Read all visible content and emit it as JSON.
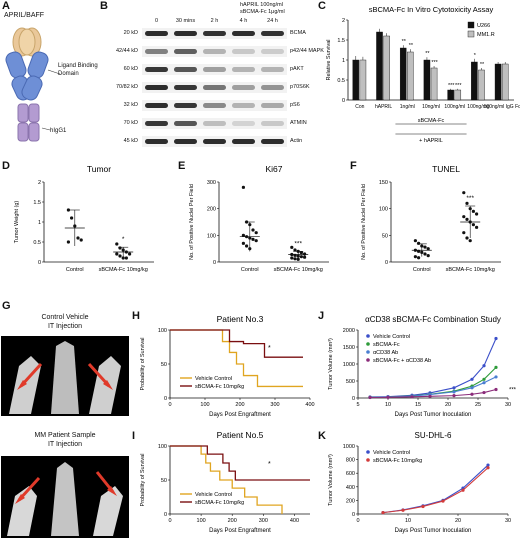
{
  "panels": {
    "A": {
      "label": "A",
      "title": "APRIL/BAFF",
      "domain": "Ligand Binding Domain",
      "fc": "hIgG1"
    },
    "B": {
      "label": "B",
      "header": [
        "hAPRIL 100ng/ml",
        "sBCMA-Fc 1μg/ml"
      ],
      "times": [
        "0",
        "30 mins",
        "2 h",
        "4 h",
        "24 h"
      ],
      "rows": [
        {
          "size": "20 kD",
          "name": "BCMA",
          "int": [
            0.95,
            0.95,
            0.92,
            0.95,
            0.92
          ]
        },
        {
          "size": "42/44 kD",
          "name": "p42/44 MAPK",
          "int": [
            0.55,
            0.7,
            0.3,
            0.2,
            0.18
          ]
        },
        {
          "size": "60 kD",
          "name": "pAKT",
          "int": [
            0.9,
            0.75,
            0.4,
            0.3,
            0.3
          ]
        },
        {
          "size": "70/82 kD",
          "name": "p70S6K",
          "int": [
            0.95,
            0.9,
            0.6,
            0.4,
            0.45
          ]
        },
        {
          "size": "32 kD",
          "name": "pS6",
          "int": [
            0.95,
            0.9,
            0.5,
            0.3,
            0.35
          ]
        },
        {
          "size": "70 kD",
          "name": "ATMIN",
          "int": [
            0.9,
            0.75,
            0.25,
            0.15,
            0.2
          ]
        },
        {
          "size": "45 kD",
          "name": "Actin",
          "int": [
            0.95,
            0.95,
            0.95,
            0.95,
            0.95
          ]
        }
      ]
    },
    "C": {
      "label": "C"
    },
    "D": {
      "label": "D"
    },
    "E": {
      "label": "E"
    },
    "F": {
      "label": "F"
    },
    "G": {
      "label": "G",
      "top_title": [
        "Control Vehicle",
        "IT Injection"
      ],
      "bottom_title": [
        "MM Patient Sample",
        "IT Injection"
      ]
    },
    "H": {
      "label": "H"
    },
    "I": {
      "label": "I"
    },
    "J": {
      "label": "J"
    },
    "K": {
      "label": "K"
    }
  },
  "chart_data": [
    {
      "id": "C",
      "type": "bar",
      "title": "sBCMA-Fc In Vitro Cytotoxicity Assay",
      "ylabel": "Relative Survival",
      "ylim": [
        0,
        2
      ],
      "yticks": [
        0,
        0.5,
        1,
        1.5,
        2
      ],
      "categories": [
        "Con",
        "hAPRIL",
        "1ng/ml",
        "10ng/ml",
        "100ng/ml",
        "100ng/mg",
        "100ng/ml IgG Fc"
      ],
      "series": [
        {
          "name": "U266",
          "color": "#111111",
          "values": [
            1.0,
            1.7,
            1.3,
            1.0,
            0.25,
            0.95,
            0.9
          ],
          "err": [
            0.1,
            0.08,
            0.07,
            0.07,
            0.03,
            0.08,
            0.05
          ]
        },
        {
          "name": "MM1.R",
          "color": "#bfbfbf",
          "values": [
            1.0,
            1.6,
            1.2,
            0.8,
            0.25,
            0.75,
            0.9
          ],
          "err": [
            0.08,
            0.07,
            0.07,
            0.05,
            0.03,
            0.05,
            0.05
          ]
        }
      ],
      "sig": [
        [
          "",
          ""
        ],
        [
          "",
          ""
        ],
        [
          "**",
          "**"
        ],
        [
          "**",
          "***"
        ],
        [
          "***",
          "***"
        ],
        [
          "*",
          "**"
        ],
        [
          "",
          ""
        ]
      ],
      "group_label": "sBCMA-Fc",
      "group_label2": "+ hAPRIL"
    },
    {
      "id": "D",
      "type": "scatter",
      "title": "Tumor",
      "ylabel": "Tumor Weight (g)",
      "ylim": [
        0,
        2.0
      ],
      "yticks": [
        0.0,
        0.5,
        1.0,
        1.5,
        2.0
      ],
      "categories": [
        "Control",
        "sBCMA-Fc 10mg/kg"
      ],
      "groups": [
        {
          "values": [
            1.3,
            1.1,
            0.9,
            0.6,
            0.55,
            0.5
          ],
          "mean": 0.85,
          "sd": 0.45
        },
        {
          "values": [
            0.45,
            0.35,
            0.3,
            0.25,
            0.2,
            0.2,
            0.15,
            0.1,
            0.1
          ],
          "mean": 0.25,
          "sd": 0.12
        }
      ],
      "sig": "*"
    },
    {
      "id": "E",
      "type": "scatter",
      "title": "Ki67",
      "ylabel": "No. of Positive Nuclei Per Field",
      "ylim": [
        0,
        300
      ],
      "yticks": [
        0,
        100,
        200,
        300
      ],
      "categories": [
        "Control",
        "sBCMA-Fc 10mg/kg"
      ],
      "groups": [
        {
          "values": [
            280,
            150,
            140,
            120,
            110,
            100,
            95,
            90,
            85,
            80,
            70,
            60,
            50
          ],
          "mean": 95,
          "sd": 55
        },
        {
          "values": [
            55,
            45,
            40,
            35,
            30,
            28,
            25,
            22,
            20,
            18,
            15,
            12,
            10
          ],
          "mean": 28,
          "sd": 12
        }
      ],
      "sig": "***"
    },
    {
      "id": "F",
      "type": "scatter",
      "title": "TUNEL",
      "ylabel": "No. of Positive Nuclei Per Field",
      "ylim": [
        0,
        150
      ],
      "yticks": [
        0,
        50,
        100,
        150
      ],
      "categories": [
        "Control",
        "sBCMA-Fc 10mg/kg"
      ],
      "groups": [
        {
          "values": [
            40,
            35,
            30,
            28,
            25,
            22,
            20,
            18,
            15,
            12,
            10,
            8
          ],
          "mean": 22,
          "sd": 12
        },
        {
          "values": [
            130,
            110,
            100,
            95,
            90,
            85,
            80,
            75,
            70,
            65,
            55,
            45,
            40
          ],
          "mean": 75,
          "sd": 30
        }
      ],
      "sig": "***"
    },
    {
      "id": "H",
      "type": "line",
      "title": "Patient No.3",
      "xlabel": "Days Post Engraftment",
      "ylabel": "Probability of Survival",
      "xlim": [
        0,
        400
      ],
      "ylim": [
        0,
        100
      ],
      "xticks": [
        0,
        100,
        200,
        300,
        400
      ],
      "yticks": [
        0,
        50,
        100
      ],
      "series": [
        {
          "name": "Vehicle Control",
          "color": "#e0a520",
          "x": [
            0,
            150,
            170,
            190,
            210,
            250,
            380
          ],
          "y": [
            100,
            83,
            67,
            50,
            33,
            17,
            17
          ]
        },
        {
          "name": "sBCMA-Fc 10mg/kg",
          "color": "#7a0f10",
          "x": [
            0,
            170,
            210,
            270,
            380
          ],
          "y": [
            100,
            83,
            80,
            60,
            60
          ]
        }
      ],
      "sig": "*"
    },
    {
      "id": "I",
      "type": "line",
      "title": "Patient No.5",
      "xlabel": "Days Post Engraftment",
      "ylabel": "Probability of Survival",
      "xlim": [
        0,
        450
      ],
      "ylim": [
        0,
        100
      ],
      "xticks": [
        0,
        100,
        200,
        300,
        400
      ],
      "yticks": [
        0,
        50,
        100
      ],
      "series": [
        {
          "name": "Vehicle Control",
          "color": "#e0a520",
          "x": [
            0,
            100,
            115,
            130,
            160,
            200,
            240,
            280,
            360
          ],
          "y": [
            100,
            88,
            75,
            63,
            50,
            38,
            25,
            13,
            0
          ]
        },
        {
          "name": "sBCMA-Fc 10mg/kg",
          "color": "#7a0f10",
          "x": [
            0,
            120,
            170,
            190,
            210,
            250,
            450
          ],
          "y": [
            100,
            88,
            75,
            63,
            50,
            50,
            50
          ]
        }
      ],
      "sig": "*"
    },
    {
      "id": "J",
      "type": "line",
      "title": "αCD38 sBCMA-Fc Combination Study",
      "xlabel": "Days Post Tumor Inoculation",
      "ylabel": "Tumor Volume (mm³)",
      "xlim": [
        5,
        30
      ],
      "ylim": [
        0,
        2000
      ],
      "xticks": [
        5,
        10,
        15,
        20,
        25,
        30
      ],
      "yticks": [
        0,
        500,
        1000,
        1500,
        2000
      ],
      "series": [
        {
          "name": "Vehicle Control",
          "color": "#3b4fc9",
          "x": [
            7,
            10,
            14,
            17,
            21,
            24,
            26,
            28
          ],
          "y": [
            30,
            40,
            80,
            150,
            300,
            550,
            950,
            1750
          ]
        },
        {
          "name": "sBCMA-Fc",
          "color": "#2e9b3a",
          "x": [
            7,
            10,
            14,
            17,
            21,
            24,
            26,
            28
          ],
          "y": [
            20,
            30,
            60,
            110,
            200,
            350,
            550,
            900
          ]
        },
        {
          "name": "αCD38 Ab",
          "color": "#4a7fd1",
          "x": [
            7,
            10,
            14,
            17,
            21,
            24,
            26,
            28
          ],
          "y": [
            20,
            30,
            55,
            100,
            180,
            300,
            450,
            620
          ]
        },
        {
          "name": "sBCMA-Fc + αCD38 Ab",
          "color": "#8b2c7a",
          "x": [
            7,
            10,
            14,
            17,
            21,
            24,
            26,
            28
          ],
          "y": [
            15,
            20,
            35,
            50,
            70,
            110,
            160,
            250
          ]
        }
      ],
      "sig": "***"
    },
    {
      "id": "K",
      "type": "line",
      "title": "SU-DHL-6",
      "xlabel": "Days Post Tumor Inoculation",
      "ylabel": "Tumor Volume (mm³)",
      "xlim": [
        0,
        30
      ],
      "ylim": [
        0,
        1000
      ],
      "xticks": [
        0,
        10,
        20,
        30
      ],
      "yticks": [
        0,
        200,
        400,
        600,
        800,
        1000
      ],
      "series": [
        {
          "name": "Vehicle Control",
          "color": "#3b4fc9",
          "x": [
            5,
            9,
            13,
            17,
            21,
            26
          ],
          "y": [
            20,
            60,
            120,
            200,
            380,
            720
          ]
        },
        {
          "name": "sBCMA-Fc 10mg/kg",
          "color": "#d23b3b",
          "x": [
            5,
            9,
            13,
            17,
            21,
            26
          ],
          "y": [
            20,
            55,
            110,
            190,
            350,
            680
          ]
        }
      ]
    }
  ]
}
